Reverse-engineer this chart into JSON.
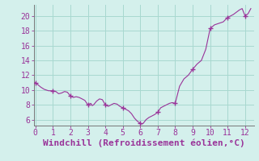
{
  "title": "",
  "xlabel": "Windchill (Refroidissement éolien,°C)",
  "ylabel": "",
  "bg_color": "#d4f0ec",
  "line_color": "#993399",
  "marker_color": "#993399",
  "grid_color": "#a8d8d0",
  "axis_color": "#888888",
  "tick_color": "#993399",
  "xlim": [
    -0.1,
    12.5
  ],
  "ylim": [
    5.2,
    21.5
  ],
  "xticks": [
    0,
    1,
    2,
    3,
    4,
    5,
    6,
    7,
    8,
    9,
    10,
    11,
    12
  ],
  "yticks": [
    6,
    8,
    10,
    12,
    14,
    16,
    18,
    20
  ],
  "x": [
    0.0,
    0.1,
    0.2,
    0.3,
    0.5,
    0.75,
    1.0,
    1.17,
    1.33,
    1.5,
    1.67,
    1.83,
    2.0,
    2.17,
    2.33,
    2.5,
    2.67,
    2.83,
    3.0,
    3.08,
    3.17,
    3.25,
    3.33,
    3.5,
    3.67,
    3.83,
    4.0,
    4.08,
    4.17,
    4.33,
    4.5,
    4.67,
    4.83,
    5.0,
    5.17,
    5.33,
    5.5,
    5.67,
    5.83,
    6.0,
    6.08,
    6.17,
    6.33,
    6.5,
    6.67,
    6.83,
    7.0,
    7.17,
    7.33,
    7.5,
    7.67,
    7.83,
    8.0,
    8.25,
    8.5,
    8.75,
    9.0,
    9.25,
    9.5,
    9.75,
    10.0,
    10.25,
    10.5,
    10.75,
    11.0,
    11.17,
    11.33,
    11.5,
    11.67,
    11.83,
    12.0,
    12.17,
    12.33
  ],
  "y": [
    11.0,
    10.8,
    10.6,
    10.4,
    10.1,
    9.9,
    9.9,
    9.8,
    9.5,
    9.6,
    9.8,
    9.7,
    9.2,
    9.0,
    9.1,
    9.0,
    8.8,
    8.6,
    8.0,
    8.1,
    8.2,
    7.9,
    8.0,
    8.5,
    8.8,
    8.7,
    8.0,
    7.9,
    7.8,
    8.0,
    8.2,
    8.1,
    7.8,
    7.6,
    7.4,
    7.2,
    6.8,
    6.2,
    5.8,
    5.5,
    5.4,
    5.5,
    6.0,
    6.3,
    6.5,
    6.7,
    7.0,
    7.6,
    7.8,
    8.0,
    8.2,
    8.3,
    8.2,
    10.5,
    11.5,
    12.0,
    12.8,
    13.5,
    14.0,
    15.5,
    18.3,
    18.8,
    19.0,
    19.2,
    19.8,
    20.0,
    20.2,
    20.5,
    20.8,
    21.0,
    20.0,
    20.3,
    21.0
  ],
  "marker_x": [
    0.0,
    1.0,
    2.0,
    3.0,
    4.0,
    5.0,
    6.0,
    7.0,
    8.0,
    9.0,
    10.0,
    11.0,
    12.0
  ],
  "marker_y": [
    11.0,
    9.9,
    9.2,
    8.0,
    8.0,
    7.6,
    5.5,
    7.0,
    8.2,
    12.8,
    18.3,
    19.8,
    20.0
  ],
  "xlabel_color": "#993399",
  "xlabel_fontsize": 8,
  "tick_fontsize": 7
}
